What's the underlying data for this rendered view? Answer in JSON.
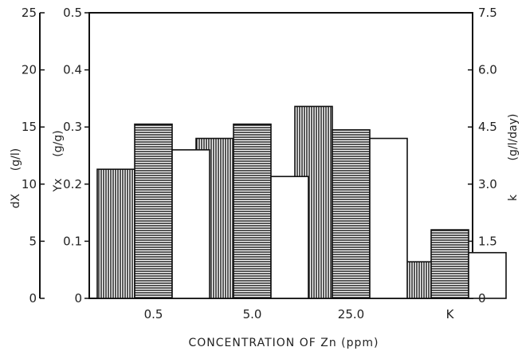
{
  "chart_data": {
    "type": "bar",
    "xlabel": "CONCENTRATION OF Zn (ppm)",
    "categories": [
      "0.5",
      "5.0",
      "25.0",
      "K"
    ],
    "axes": {
      "left_outer": {
        "label_main": "dX",
        "label_unit": "(g/l)",
        "ylim": [
          0,
          25
        ],
        "ticks": [
          "0",
          "5",
          "10",
          "15",
          "20",
          "25"
        ]
      },
      "left_inner": {
        "label_main": "Yx",
        "label_unit": "(g/g)",
        "ylim": [
          0,
          0.5
        ],
        "ticks": [
          "0",
          "0.1",
          "0.2",
          "0.3",
          "0.4",
          "0.5"
        ]
      },
      "right": {
        "label_main": "k",
        "label_unit": "(g/l/day)",
        "ylim": [
          0,
          7.5
        ],
        "ticks": [
          "0",
          "1.5",
          "3.0",
          "4.5",
          "6.0",
          "7.5"
        ]
      }
    },
    "series": [
      {
        "axis": "left_outer",
        "pattern": "vertical-hatch",
        "values": [
          11.3,
          14.0,
          16.8,
          3.2
        ]
      },
      {
        "axis": "left_inner",
        "pattern": "horizontal-hatch",
        "values": [
          0.305,
          0.305,
          0.295,
          0.12
        ]
      },
      {
        "axis": "right",
        "pattern": "plain",
        "values": [
          3.9,
          3.2,
          4.2,
          1.2
        ]
      }
    ]
  }
}
